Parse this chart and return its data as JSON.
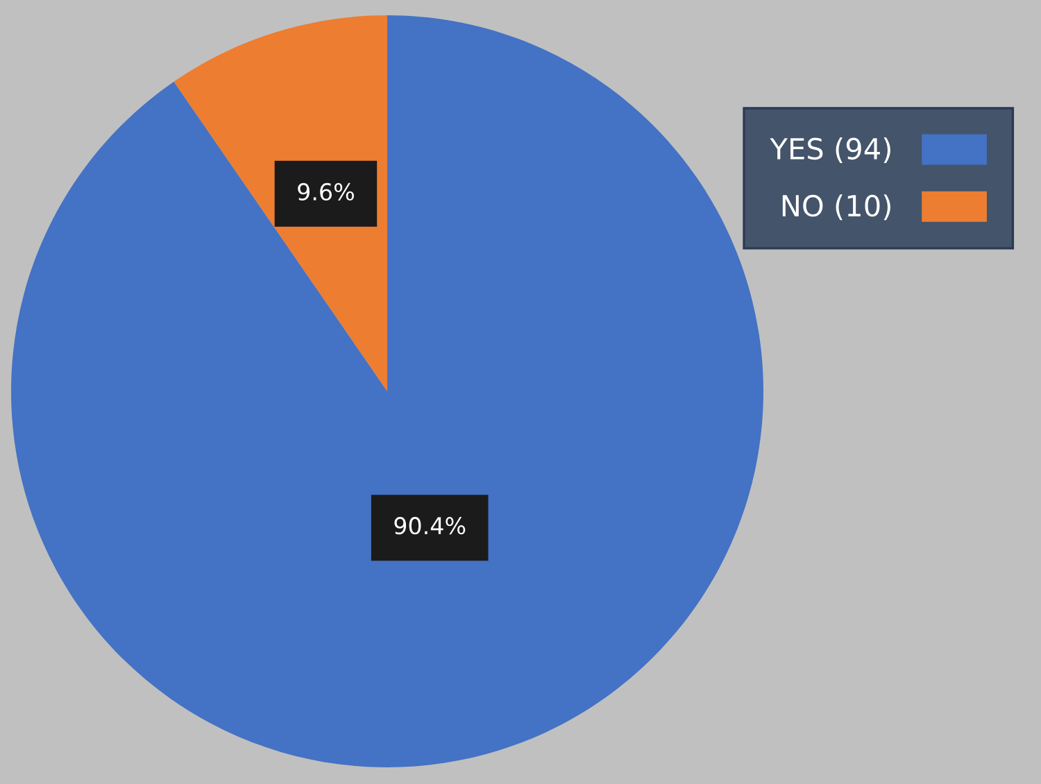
{
  "chart_data": {
    "type": "pie",
    "categories": [
      "YES (94)",
      "NO (10)"
    ],
    "values": [
      90.4,
      9.6
    ],
    "colors": [
      "#4472c4",
      "#ed7d31"
    ],
    "value_labels": [
      "90.4%",
      "9.6%"
    ],
    "legend": "top right"
  }
}
